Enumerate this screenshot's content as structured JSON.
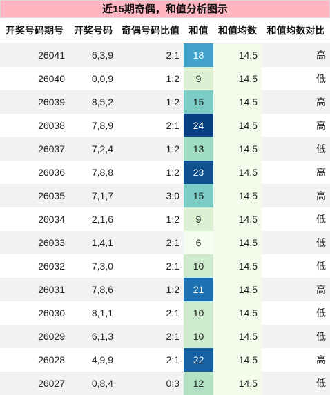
{
  "title": "近15期奇偶，和值分析图示",
  "headers": [
    "开奖号码期号",
    "开奖号码",
    "奇偶号码比值",
    "和值",
    "和值均数",
    "和值均数对比"
  ],
  "rows": [
    {
      "period": "26041",
      "numbers": "6,3,9",
      "ratio": "2:1",
      "sum": "18",
      "avg": "14.5",
      "cmp": "高"
    },
    {
      "period": "26040",
      "numbers": "0,0,9",
      "ratio": "1:2",
      "sum": "9",
      "avg": "14.5",
      "cmp": "低"
    },
    {
      "period": "26039",
      "numbers": "8,5,2",
      "ratio": "1:2",
      "sum": "15",
      "avg": "14.5",
      "cmp": "高"
    },
    {
      "period": "26038",
      "numbers": "7,8,9",
      "ratio": "2:1",
      "sum": "24",
      "avg": "14.5",
      "cmp": "高"
    },
    {
      "period": "26037",
      "numbers": "7,2,4",
      "ratio": "1:2",
      "sum": "13",
      "avg": "14.5",
      "cmp": "低"
    },
    {
      "period": "26036",
      "numbers": "7,8,8",
      "ratio": "1:2",
      "sum": "23",
      "avg": "14.5",
      "cmp": "高"
    },
    {
      "period": "26035",
      "numbers": "7,1,7",
      "ratio": "3:0",
      "sum": "15",
      "avg": "14.5",
      "cmp": "高"
    },
    {
      "period": "26034",
      "numbers": "2,1,6",
      "ratio": "1:2",
      "sum": "9",
      "avg": "14.5",
      "cmp": "低"
    },
    {
      "period": "26033",
      "numbers": "1,4,1",
      "ratio": "2:1",
      "sum": "6",
      "avg": "14.5",
      "cmp": "低"
    },
    {
      "period": "26032",
      "numbers": "7,3,0",
      "ratio": "2:1",
      "sum": "10",
      "avg": "14.5",
      "cmp": "低"
    },
    {
      "period": "26031",
      "numbers": "7,8,6",
      "ratio": "1:2",
      "sum": "21",
      "avg": "14.5",
      "cmp": "高"
    },
    {
      "period": "26030",
      "numbers": "8,1,1",
      "ratio": "2:1",
      "sum": "10",
      "avg": "14.5",
      "cmp": "低"
    },
    {
      "period": "26029",
      "numbers": "6,1,3",
      "ratio": "2:1",
      "sum": "10",
      "avg": "14.5",
      "cmp": "低"
    },
    {
      "period": "26028",
      "numbers": "4,9,9",
      "ratio": "2:1",
      "sum": "22",
      "avg": "14.5",
      "cmp": "高"
    },
    {
      "period": "26027",
      "numbers": "0,8,4",
      "ratio": "0:3",
      "sum": "12",
      "avg": "14.5",
      "cmp": "低"
    }
  ],
  "colors": {
    "title_bg": "#ffb6c1",
    "avg_bg": "#f3faea",
    "sum_low": "#f7fcf0",
    "sum_mid": "#7bccc4",
    "sum_high": "#084081"
  }
}
